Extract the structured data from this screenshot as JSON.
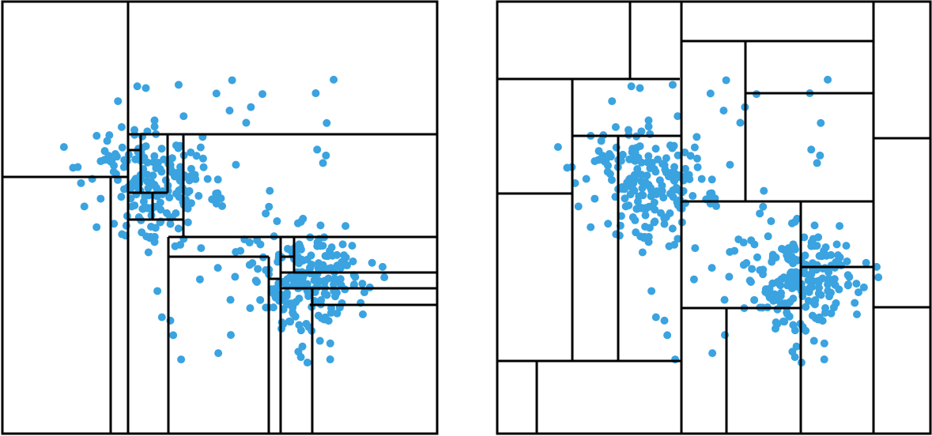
{
  "colors": {
    "point": "#3aa3e0",
    "line": "#000000",
    "background": "#ffffff"
  },
  "panels": [
    {
      "id": "left-partition",
      "description_visible_text": ""
    },
    {
      "id": "right-partition",
      "description_visible_text": ""
    }
  ]
}
